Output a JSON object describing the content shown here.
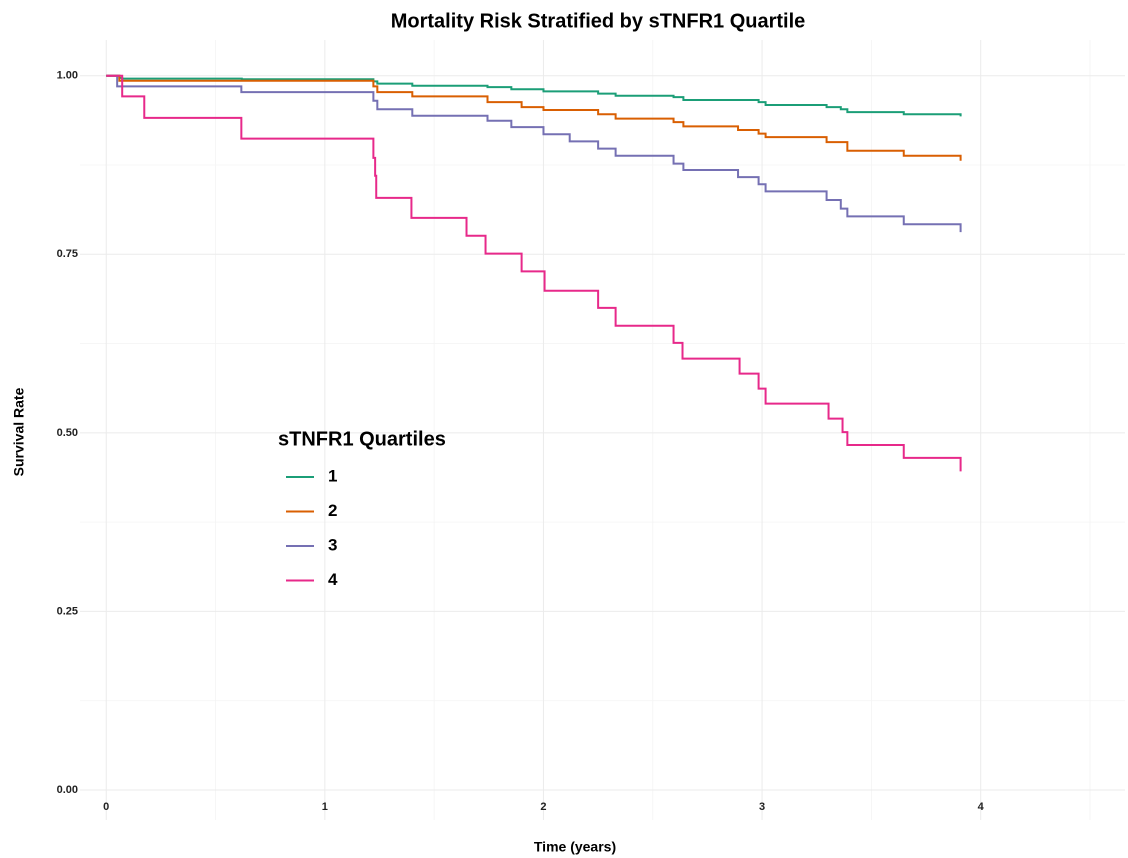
{
  "chart_data": {
    "type": "step",
    "title": "Mortality Risk Stratified by sTNFR1 Quartile",
    "x_label": "Time (years)",
    "y_label": "Survival Rate",
    "legend_title": "sTNFR1 Quartiles",
    "legend_position": "inside-left",
    "grid": true,
    "minor_grid": true,
    "xlim": [
      -0.12,
      4.66
    ],
    "ylim": [
      -0.042,
      1.05
    ],
    "xticks": [
      0,
      1,
      2,
      3,
      4
    ],
    "yticks": [
      {
        "value": 0,
        "label": "0.00"
      },
      {
        "value": 0.25,
        "label": "0.25"
      },
      {
        "value": 0.5,
        "label": "0.50"
      },
      {
        "value": 0.75,
        "label": "0.75"
      },
      {
        "value": 1,
        "label": "1.00"
      }
    ],
    "series": [
      {
        "name": "1",
        "color": "#1b9e77",
        "x": [
          0,
          0.06,
          0.073,
          0.62,
          1.222,
          1.24,
          1.4,
          1.744,
          1.853,
          2.0,
          2.25,
          2.33,
          2.595,
          2.64,
          2.984,
          3.016,
          3.295,
          3.36,
          3.39,
          3.648,
          3.908
        ],
        "values": [
          1,
          0.997,
          0.996,
          0.995,
          0.992,
          0.989,
          0.986,
          0.984,
          0.981,
          0.978,
          0.975,
          0.972,
          0.97,
          0.966,
          0.963,
          0.959,
          0.956,
          0.953,
          0.949,
          0.946,
          0.943
        ]
      },
      {
        "name": "2",
        "color": "#d95f02",
        "x": [
          0,
          0.06,
          1.222,
          1.24,
          1.4,
          1.744,
          1.9,
          2.0,
          2.25,
          2.33,
          2.595,
          2.64,
          2.89,
          2.984,
          3.016,
          3.295,
          3.39,
          3.648,
          3.908
        ],
        "values": [
          1,
          0.993,
          0.985,
          0.977,
          0.971,
          0.963,
          0.956,
          0.952,
          0.946,
          0.94,
          0.935,
          0.929,
          0.924,
          0.919,
          0.914,
          0.907,
          0.895,
          0.888,
          0.881
        ]
      },
      {
        "name": "3",
        "color": "#7570b3",
        "x": [
          0,
          0.05,
          0.618,
          1.222,
          1.24,
          1.4,
          1.744,
          1.853,
          2.0,
          2.12,
          2.25,
          2.33,
          2.595,
          2.64,
          2.89,
          2.984,
          3.016,
          3.295,
          3.36,
          3.39,
          3.648,
          3.908
        ],
        "values": [
          1,
          0.985,
          0.977,
          0.965,
          0.953,
          0.944,
          0.937,
          0.928,
          0.918,
          0.908,
          0.898,
          0.888,
          0.877,
          0.868,
          0.858,
          0.848,
          0.838,
          0.826,
          0.814,
          0.803,
          0.792,
          0.781
        ]
      },
      {
        "name": "4",
        "color": "#e7298a",
        "x": [
          0,
          0.073,
          0.174,
          0.618,
          1.222,
          1.23,
          1.235,
          1.396,
          1.648,
          1.735,
          1.9,
          2.005,
          2.25,
          2.33,
          2.595,
          2.636,
          2.897,
          2.984,
          3.016,
          3.304,
          3.368,
          3.39,
          3.648,
          3.908
        ],
        "values": [
          1,
          0.971,
          0.941,
          0.912,
          0.885,
          0.86,
          0.829,
          0.801,
          0.776,
          0.751,
          0.726,
          0.699,
          0.675,
          0.65,
          0.626,
          0.604,
          0.583,
          0.562,
          0.541,
          0.52,
          0.501,
          0.483,
          0.465,
          0.446
        ]
      }
    ]
  }
}
